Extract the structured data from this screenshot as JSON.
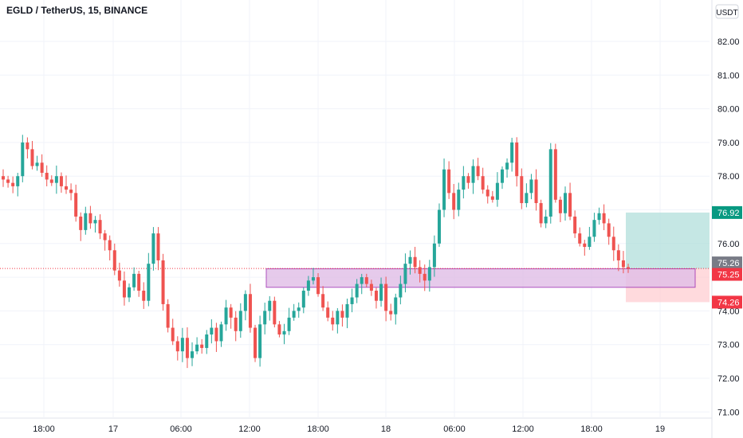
{
  "header": {
    "title": "EGLD / TetherUS, 15, BINANCE"
  },
  "currency_button": {
    "label": "USDT"
  },
  "colors": {
    "up": "#26a69a",
    "down": "#ef5350",
    "zone_fill": "#e1bee7",
    "zone_stroke": "#9c27b0",
    "target_fill": "#b2dfdb",
    "stop_fill": "#ffcdd2",
    "tag_target": "#089981",
    "tag_stop": "#f23645",
    "tag_current": "#787b86",
    "grid": "#f0f3fa"
  },
  "chart_data": {
    "type": "candlestick",
    "symbol": "EGLD / TetherUS",
    "interval": "15",
    "exchange": "BINANCE",
    "y_axis": {
      "ticks": [
        71.0,
        72.0,
        73.0,
        74.0,
        75.0,
        76.0,
        77.0,
        78.0,
        79.0,
        80.0,
        81.0,
        82.0
      ],
      "range": [
        70.8,
        83.1
      ],
      "position": "right"
    },
    "x_axis": {
      "ticks": [
        "18:00",
        "17",
        "06:00",
        "12:00",
        "18:00",
        "18",
        "06:00",
        "12:00",
        "18:00",
        "19"
      ]
    },
    "price_tags": {
      "target": "76.92",
      "current": "75.26",
      "entry": "75.25",
      "stop": "74.26"
    },
    "levels": {
      "target": 76.92,
      "current": 75.26,
      "entry": 75.25,
      "stop": 74.26
    },
    "zone": {
      "top": 75.25,
      "bottom": 74.7
    },
    "close_series": [
      77.9,
      77.8,
      77.7,
      78.0,
      79.0,
      78.8,
      78.3,
      78.4,
      78.1,
      77.9,
      77.8,
      78.0,
      77.7,
      77.6,
      77.5,
      76.8,
      76.4,
      76.9,
      76.6,
      76.7,
      76.3,
      76.1,
      75.8,
      75.2,
      74.9,
      74.4,
      74.7,
      75.1,
      74.6,
      74.3,
      75.4,
      76.3,
      75.5,
      74.2,
      73.5,
      73.1,
      72.8,
      73.2,
      72.6,
      72.8,
      73.0,
      72.9,
      73.3,
      73.5,
      73.1,
      73.6,
      74.1,
      73.8,
      73.4,
      74.0,
      74.5,
      73.5,
      72.6,
      73.6,
      74.0,
      74.3,
      73.6,
      73.3,
      73.4,
      73.8,
      74.0,
      74.1,
      74.6,
      74.9,
      75.0,
      74.5,
      74.1,
      73.8,
      73.6,
      74.0,
      73.8,
      74.2,
      74.4,
      74.8,
      75.0,
      74.8,
      74.6,
      74.3,
      74.8,
      74.0,
      73.9,
      74.4,
      74.8,
      75.4,
      75.6,
      75.3,
      75.1,
      74.9,
      75.3,
      76.0,
      77.0,
      78.2,
      77.5,
      77.0,
      77.6,
      78.0,
      77.8,
      78.3,
      78.0,
      77.6,
      77.4,
      77.3,
      77.8,
      78.2,
      78.4,
      79.0,
      78.0,
      77.2,
      77.5,
      77.9,
      77.2,
      76.6,
      76.8,
      78.8,
      77.3,
      76.9,
      77.5,
      76.8,
      76.3,
      76.0,
      75.9,
      76.2,
      76.7,
      76.9,
      76.6,
      76.2,
      75.8,
      75.5,
      75.3,
      75.26
    ],
    "visible_price_range": {
      "low": 72.1,
      "high": 80.0
    }
  }
}
